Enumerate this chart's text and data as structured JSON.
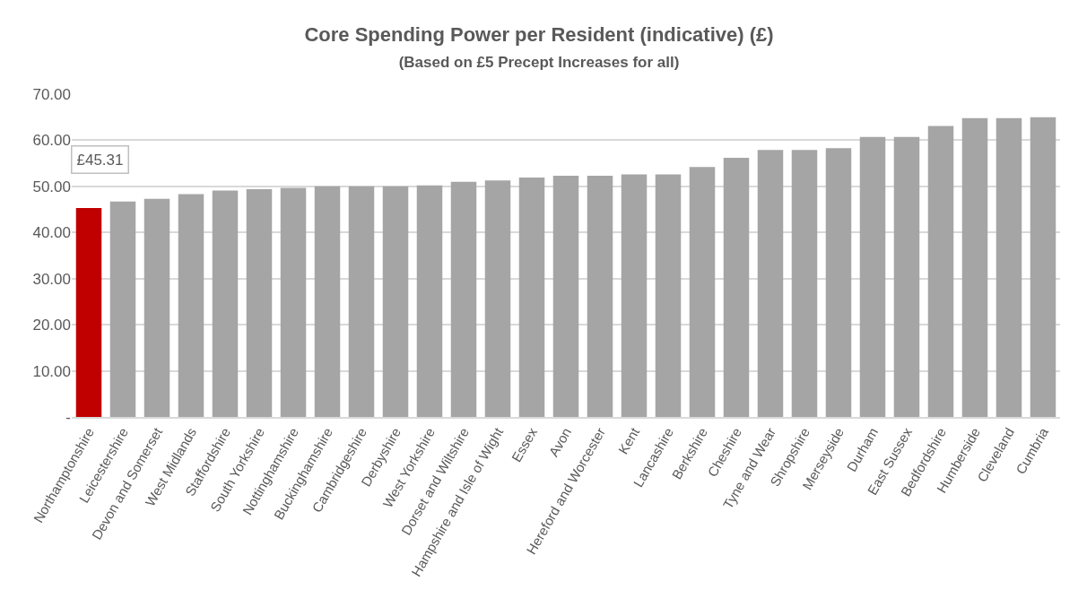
{
  "chart_data": {
    "type": "bar",
    "title": "Core Spending Power per Resident (indicative) (£)",
    "subtitle": "(Based on £5 Precept Increases for all)",
    "categories": [
      "Northamptonshire",
      "Leicestershire",
      "Devon and Somerset",
      "West Midlands",
      "Staffordshire",
      "South Yorkshire",
      "Nottinghamshire",
      "Buckinghamshire",
      "Cambridgeshire",
      "Derbyshire",
      "West Yorkshire",
      "Dorset and Wiltshire",
      "Hampshire and Isle of Wight",
      "Essex",
      "Avon",
      "Hereford and Worcester",
      "Kent",
      "Lancashire",
      "Berkshire",
      "Cheshire",
      "Tyne and Wear",
      "Shropshire",
      "Merseyside",
      "Durham",
      "East Sussex",
      "Bedfordshire",
      "Humberside",
      "Cleveland",
      "Cumbria"
    ],
    "values": [
      45.31,
      46.7,
      47.3,
      48.3,
      49.1,
      49.4,
      49.7,
      50.0,
      50.0,
      50.0,
      50.2,
      51.0,
      51.3,
      51.9,
      52.3,
      52.3,
      52.6,
      52.6,
      54.2,
      56.2,
      57.9,
      57.9,
      58.3,
      60.7,
      60.7,
      63.1,
      64.8,
      64.8,
      65.0
    ],
    "colors": [
      "#c00000",
      "#a5a5a5",
      "#a5a5a5",
      "#a5a5a5",
      "#a5a5a5",
      "#a5a5a5",
      "#a5a5a5",
      "#a5a5a5",
      "#a5a5a5",
      "#a5a5a5",
      "#a5a5a5",
      "#a5a5a5",
      "#a5a5a5",
      "#a5a5a5",
      "#a5a5a5",
      "#a5a5a5",
      "#a5a5a5",
      "#a5a5a5",
      "#a5a5a5",
      "#a5a5a5",
      "#a5a5a5",
      "#a5a5a5",
      "#a5a5a5",
      "#a5a5a5",
      "#a5a5a5",
      "#a5a5a5",
      "#a5a5a5",
      "#a5a5a5",
      "#a5a5a5"
    ],
    "value_labels": [
      "£45.31",
      null,
      null,
      null,
      null,
      null,
      null,
      null,
      null,
      null,
      null,
      null,
      null,
      null,
      null,
      null,
      null,
      null,
      null,
      null,
      null,
      null,
      null,
      null,
      null,
      null,
      null,
      null,
      null
    ],
    "ylim": [
      0,
      70
    ],
    "yticks": [
      {
        "value": 0,
        "label": "-"
      },
      {
        "value": 10,
        "label": "10.00"
      },
      {
        "value": 20,
        "label": "20.00"
      },
      {
        "value": 30,
        "label": "30.00"
      },
      {
        "value": 40,
        "label": "40.00"
      },
      {
        "value": 50,
        "label": "50.00"
      },
      {
        "value": 60,
        "label": "60.00"
      },
      {
        "value": 70,
        "label": "70.00"
      }
    ],
    "grid": "y"
  }
}
